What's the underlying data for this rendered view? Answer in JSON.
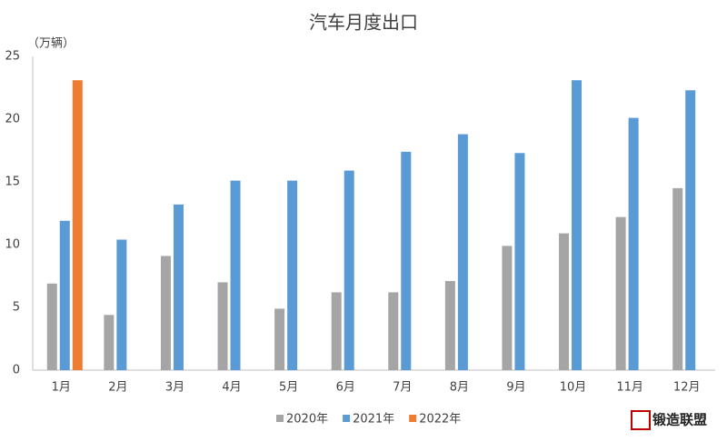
{
  "chart_data": {
    "type": "bar",
    "title": "汽车月度出口",
    "y_unit": "（万辆）",
    "categories": [
      "1月",
      "2月",
      "3月",
      "4月",
      "5月",
      "6月",
      "7月",
      "8月",
      "9月",
      "10月",
      "11月",
      "12月"
    ],
    "series": [
      {
        "name": "2020年",
        "color": "#a5a5a5",
        "values": [
          6.9,
          4.4,
          9.1,
          7.0,
          4.9,
          6.2,
          6.2,
          7.1,
          9.9,
          10.9,
          12.2,
          14.5
        ]
      },
      {
        "name": "2021年",
        "color": "#5b9bd5",
        "values": [
          11.9,
          10.4,
          13.2,
          15.1,
          15.1,
          15.9,
          17.4,
          18.8,
          17.3,
          23.1,
          20.1,
          22.3
        ]
      },
      {
        "name": "2022年",
        "color": "#ed7d31",
        "values": [
          23.1,
          null,
          null,
          null,
          null,
          null,
          null,
          null,
          null,
          null,
          null,
          null
        ]
      }
    ],
    "ylim": [
      0,
      25
    ],
    "yticks": [
      0,
      5,
      10,
      15,
      20,
      25
    ],
    "grid": false,
    "legend": "bottom",
    "watermark": "锻造联盟"
  }
}
